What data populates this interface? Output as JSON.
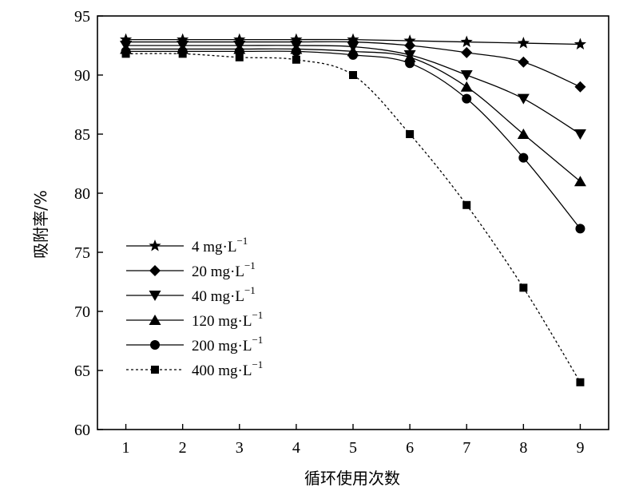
{
  "chart_data": {
    "type": "line",
    "title": "",
    "xlabel": "循环使用次数",
    "ylabel": "吸附率/%",
    "xlim": [
      0.5,
      9.5
    ],
    "ylim": [
      60,
      95
    ],
    "x_ticks": [
      "1",
      "2",
      "3",
      "4",
      "5",
      "6",
      "7",
      "8",
      "9"
    ],
    "y_ticks": [
      "60",
      "65",
      "70",
      "75",
      "80",
      "85",
      "90",
      "95"
    ],
    "x": [
      1,
      2,
      3,
      4,
      5,
      6,
      7,
      8,
      9
    ],
    "grid": false,
    "legend_position": "lower-left",
    "series": [
      {
        "name": "4 mg·L",
        "superscript": "−1",
        "marker": "star",
        "line": "solid",
        "values": [
          93.0,
          93.0,
          93.0,
          93.0,
          93.0,
          92.9,
          92.8,
          92.7,
          92.6
        ]
      },
      {
        "name": "20 mg·L",
        "superscript": "−1",
        "marker": "diamond",
        "line": "solid",
        "values": [
          92.8,
          92.8,
          92.8,
          92.8,
          92.8,
          92.5,
          91.9,
          91.1,
          89.0
        ]
      },
      {
        "name": "40 mg·L",
        "superscript": "−1",
        "marker": "triangle-down",
        "line": "solid",
        "values": [
          92.5,
          92.5,
          92.5,
          92.5,
          92.4,
          91.7,
          90.0,
          88.0,
          85.0
        ]
      },
      {
        "name": "120 mg·L",
        "superscript": "−1",
        "marker": "triangle-up",
        "line": "solid",
        "values": [
          92.2,
          92.2,
          92.2,
          92.2,
          92.0,
          91.5,
          89.0,
          85.0,
          81.0
        ]
      },
      {
        "name": "200 mg·L",
        "superscript": "−1",
        "marker": "circle",
        "line": "solid",
        "values": [
          92.0,
          92.0,
          92.0,
          92.0,
          91.7,
          91.0,
          88.0,
          83.0,
          77.0
        ]
      },
      {
        "name": "400 mg·L",
        "superscript": "−1",
        "marker": "square",
        "line": "dashed",
        "values": [
          91.8,
          91.8,
          91.5,
          91.3,
          90.0,
          85.0,
          79.0,
          72.0,
          64.0
        ]
      }
    ]
  }
}
